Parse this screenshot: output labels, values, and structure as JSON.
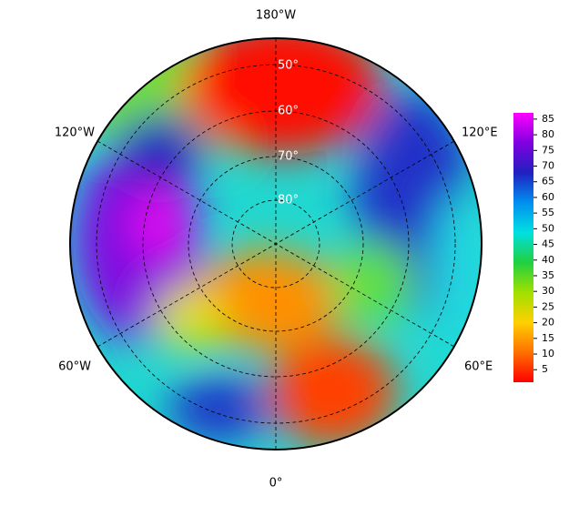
{
  "map": {
    "longitude_labels": [
      "180°W",
      "120°E",
      "60°E",
      "0°",
      "60°W",
      "120°W"
    ],
    "latitude_labels": [
      "50°",
      "60°",
      "70°",
      "80°"
    ]
  },
  "colorbar": {
    "range": [
      1,
      87
    ],
    "ticks": [
      5,
      10,
      15,
      20,
      25,
      30,
      35,
      40,
      45,
      50,
      55,
      60,
      65,
      70,
      75,
      80,
      85
    ],
    "colors": [
      "#ff0000",
      "#ff7000",
      "#ffd000",
      "#a0e000",
      "#20d040",
      "#00e0e0",
      "#0090f0",
      "#2020c0",
      "#8000e0",
      "#ff00ff"
    ]
  }
}
